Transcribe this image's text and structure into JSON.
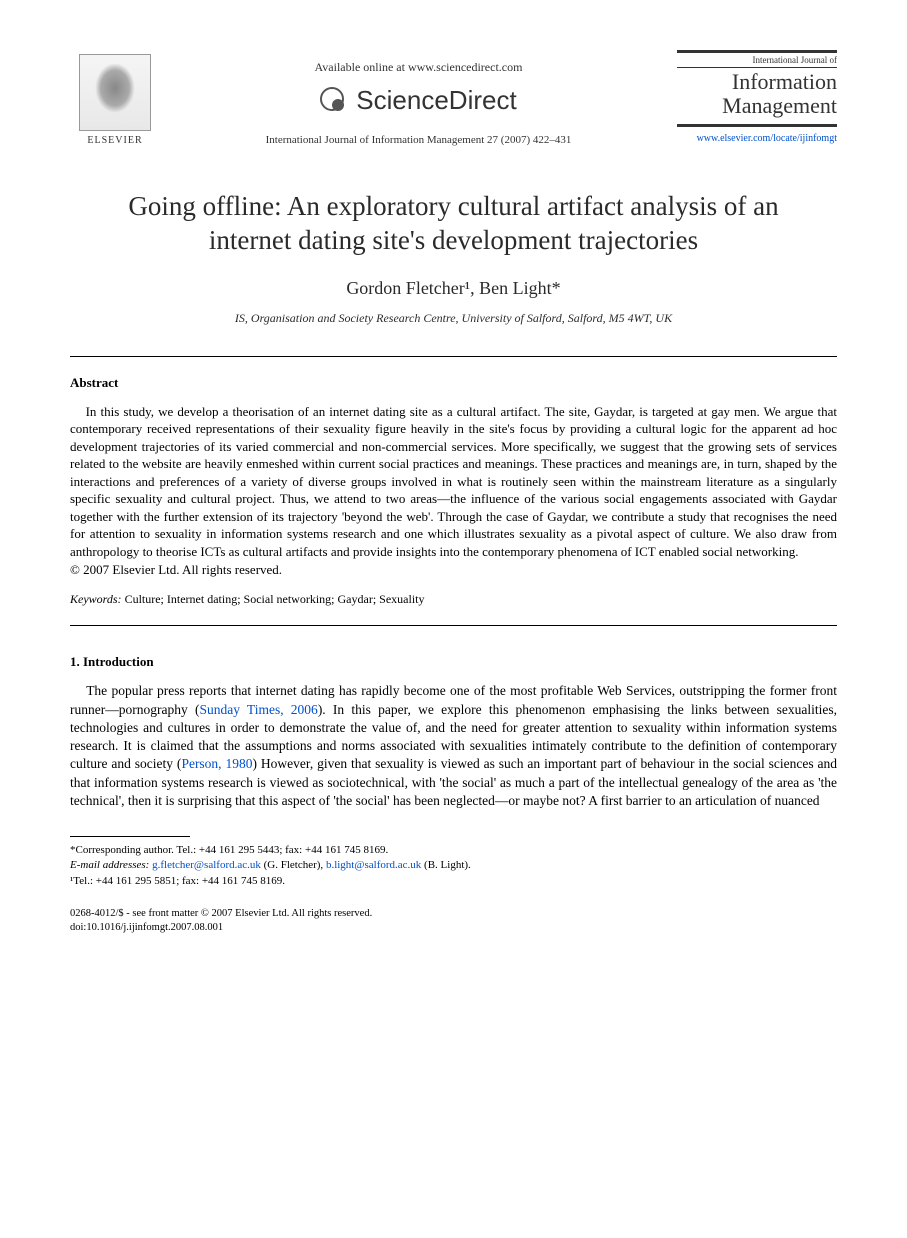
{
  "header": {
    "publisher_name": "ELSEVIER",
    "available_online": "Available online at www.sciencedirect.com",
    "sciencedirect": "ScienceDirect",
    "citation": "International Journal of Information Management 27 (2007) 422–431",
    "journal_small": "International Journal of",
    "journal_large_line1": "Information",
    "journal_large_line2": "Management",
    "journal_url": "www.elsevier.com/locate/ijinfomgt"
  },
  "title": "Going offline: An exploratory cultural artifact analysis of an internet dating site's development trajectories",
  "authors": "Gordon Fletcher¹, Ben Light*",
  "affiliation": "IS, Organisation and Society Research Centre, University of Salford, Salford, M5 4WT, UK",
  "abstract": {
    "heading": "Abstract",
    "body": "In this study, we develop a theorisation of an internet dating site as a cultural artifact. The site, Gaydar, is targeted at gay men. We argue that contemporary received representations of their sexuality figure heavily in the site's focus by providing a cultural logic for the apparent ad hoc development trajectories of its varied commercial and non-commercial services. More specifically, we suggest that the growing sets of services related to the website are heavily enmeshed within current social practices and meanings. These practices and meanings are, in turn, shaped by the interactions and preferences of a variety of diverse groups involved in what is routinely seen within the mainstream literature as a singularly specific sexuality and cultural project. Thus, we attend to two areas—the influence of the various social engagements associated with Gaydar together with the further extension of its trajectory 'beyond the web'. Through the case of Gaydar, we contribute a study that recognises the need for attention to sexuality in information systems research and one which illustrates sexuality as a pivotal aspect of culture. We also draw from anthropology to theorise ICTs as cultural artifacts and provide insights into the contemporary phenomena of ICT enabled social networking.",
    "copyright": "© 2007 Elsevier Ltd. All rights reserved."
  },
  "keywords": {
    "label": "Keywords:",
    "list": " Culture; Internet dating; Social networking; Gaydar; Sexuality"
  },
  "section1": {
    "heading": "1.  Introduction",
    "para1_a": "The popular press reports that internet dating has rapidly become one of the most profitable Web Services, outstripping the former front runner—pornography (",
    "cite1": "Sunday Times, 2006",
    "para1_b": "). In this paper, we explore this phenomenon emphasising the links between sexualities, technologies and cultures in order to demonstrate the value of, and the need for greater attention to sexuality within information systems research. It is claimed that the assumptions and norms associated with sexualities intimately contribute to the definition of contemporary culture and society (",
    "cite2": "Person, 1980",
    "para1_c": ") However, given that sexuality is viewed as such an important part of behaviour in the social sciences and that information systems research is viewed as sociotechnical, with 'the social' as much a part of the intellectual genealogy of the area as 'the technical', then it is surprising that this aspect of 'the social' has been neglected—or maybe not? A first barrier to an articulation of nuanced"
  },
  "footnotes": {
    "corr": "*Corresponding author. Tel.: +44 161 295 5443; fax: +44 161 745 8169.",
    "email_label": "E-mail addresses:",
    "email1": "g.fletcher@salford.ac.uk",
    "email1_name": " (G. Fletcher), ",
    "email2": "b.light@salford.ac.uk",
    "email2_name": " (B. Light).",
    "tel1": "¹Tel.: +44 161 295 5851; fax: +44 161 745 8169."
  },
  "doi": {
    "line1": "0268-4012/$ - see front matter © 2007 Elsevier Ltd. All rights reserved.",
    "line2": "doi:10.1016/j.ijinfomgt.2007.08.001"
  },
  "colors": {
    "text": "#000000",
    "link": "#0050cc",
    "background": "#ffffff",
    "rule": "#000000"
  },
  "typography": {
    "title_fontsize": 27,
    "authors_fontsize": 18,
    "body_fontsize": 13.5,
    "abstract_fontsize": 13,
    "footnote_fontsize": 11,
    "font_family": "Times New Roman"
  }
}
